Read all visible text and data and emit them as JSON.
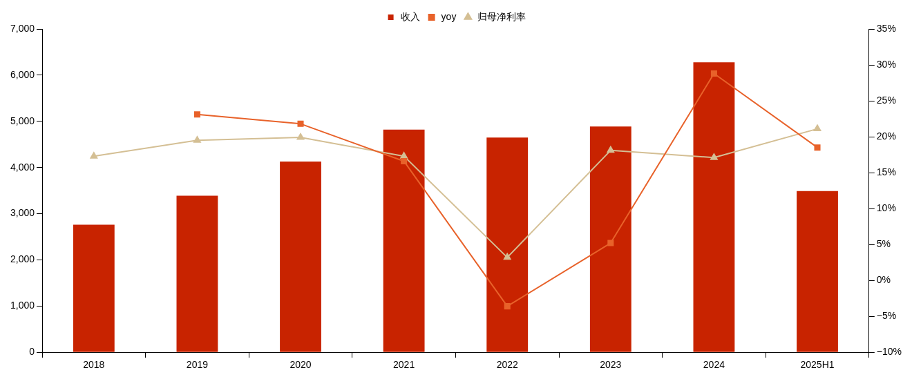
{
  "chart_data": {
    "type": "bar",
    "categories": [
      "2018",
      "2019",
      "2020",
      "2021",
      "2022",
      "2023",
      "2024",
      "2025H1"
    ],
    "series": [
      {
        "name": "收入",
        "color": "#c82300",
        "values": [
          2760,
          3390,
          4130,
          4820,
          4650,
          4890,
          6280,
          3490
        ]
      },
      {
        "name": "yoy",
        "type": "line",
        "axis": "y2",
        "marker": "square",
        "color": "#e8622a",
        "values": [
          null,
          23.1,
          21.8,
          16.6,
          -3.6,
          5.2,
          28.8,
          18.5
        ]
      },
      {
        "name": "归母净利率",
        "type": "line",
        "axis": "y2",
        "marker": "triangle",
        "color": "#d4bf94",
        "values": [
          17.3,
          19.5,
          19.9,
          17.3,
          3.2,
          18.1,
          17.1,
          21.1
        ]
      }
    ],
    "ylim": [
      0,
      7000
    ],
    "yticks": [
      0,
      {
        "value": 1000,
        "label": "1,000"
      },
      {
        "value": 2000,
        "label": "2,000"
      },
      {
        "value": 3000,
        "label": "3,000"
      },
      {
        "value": 4000,
        "label": "4,000"
      },
      {
        "value": 5000,
        "label": "5,000"
      },
      {
        "value": 6000,
        "label": "6,000"
      },
      {
        "value": 7000,
        "label": "7,000"
      }
    ],
    "y2lim": [
      -10,
      35
    ],
    "y2ticks": [
      {
        "value": -10,
        "label": "−10%"
      },
      {
        "value": -5,
        "label": "−5%"
      },
      {
        "value": 0,
        "label": "0%"
      },
      {
        "value": 5,
        "label": "5%"
      },
      {
        "value": 10,
        "label": "10%"
      },
      {
        "value": 15,
        "label": "15%"
      },
      {
        "value": 20,
        "label": "20%"
      },
      {
        "value": 25,
        "label": "25%"
      },
      {
        "value": 30,
        "label": "30%"
      },
      {
        "value": 35,
        "label": "35%"
      }
    ],
    "grid": false,
    "legend": "top"
  }
}
